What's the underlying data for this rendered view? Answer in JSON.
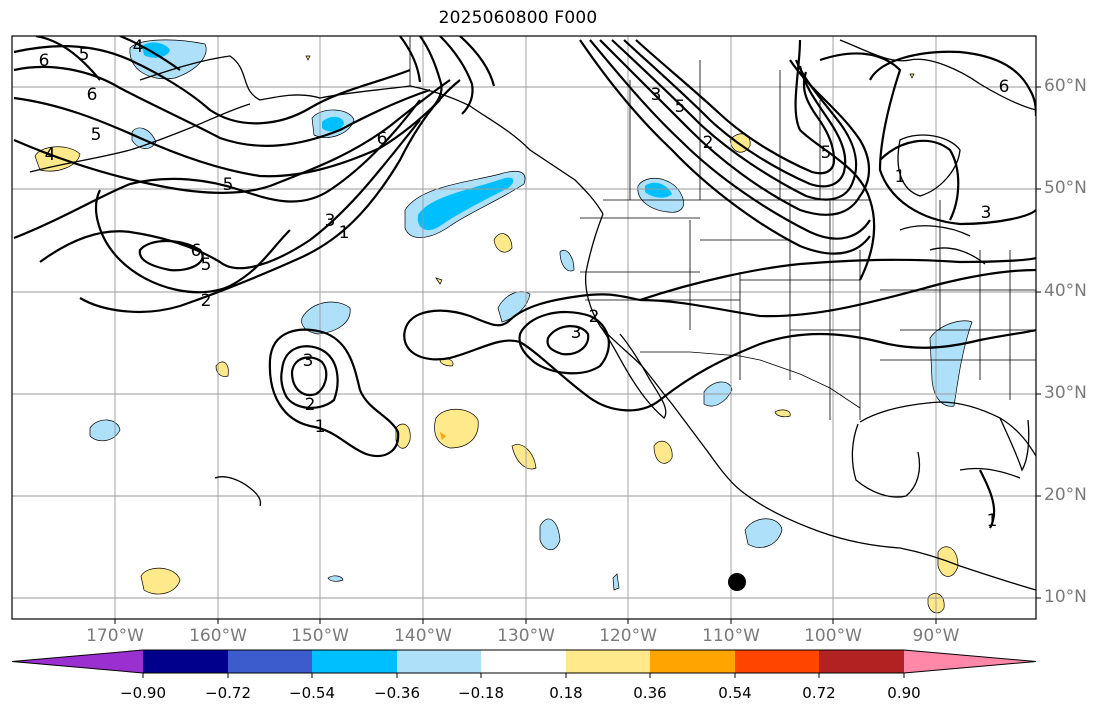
{
  "title": "2025060800 F000",
  "lat_labels": [
    "60°N",
    "50°N",
    "40°N",
    "30°N",
    "20°N",
    "10°N"
  ],
  "lon_labels": [
    "170°W",
    "160°W",
    "150°W",
    "140°W",
    "130°W",
    "120°W",
    "110°W",
    "100°W",
    "90°W"
  ],
  "colorbar": {
    "tick_labels": [
      "−0.90",
      "−0.72",
      "−0.54",
      "−0.36",
      "−0.18",
      "0.18",
      "0.36",
      "0.54",
      "0.72",
      "0.90"
    ],
    "colors": [
      "#9b30d0",
      "#00008c",
      "#3c5ccd",
      "#00bfff",
      "#aee0fa",
      "#ffffff",
      "#ffe98a",
      "#ffa400",
      "#ff4500",
      "#b22222",
      "#ff87a8"
    ]
  },
  "contour_labels": [
    "6",
    "5",
    "4",
    "6",
    "5",
    "4",
    "5",
    "6",
    "5",
    "2",
    "3",
    "1",
    "6",
    "5",
    "3",
    "2",
    "1",
    "3",
    "2",
    "3",
    "2",
    "6",
    "5",
    "1",
    "3",
    "1"
  ],
  "marker": "station-dot"
}
